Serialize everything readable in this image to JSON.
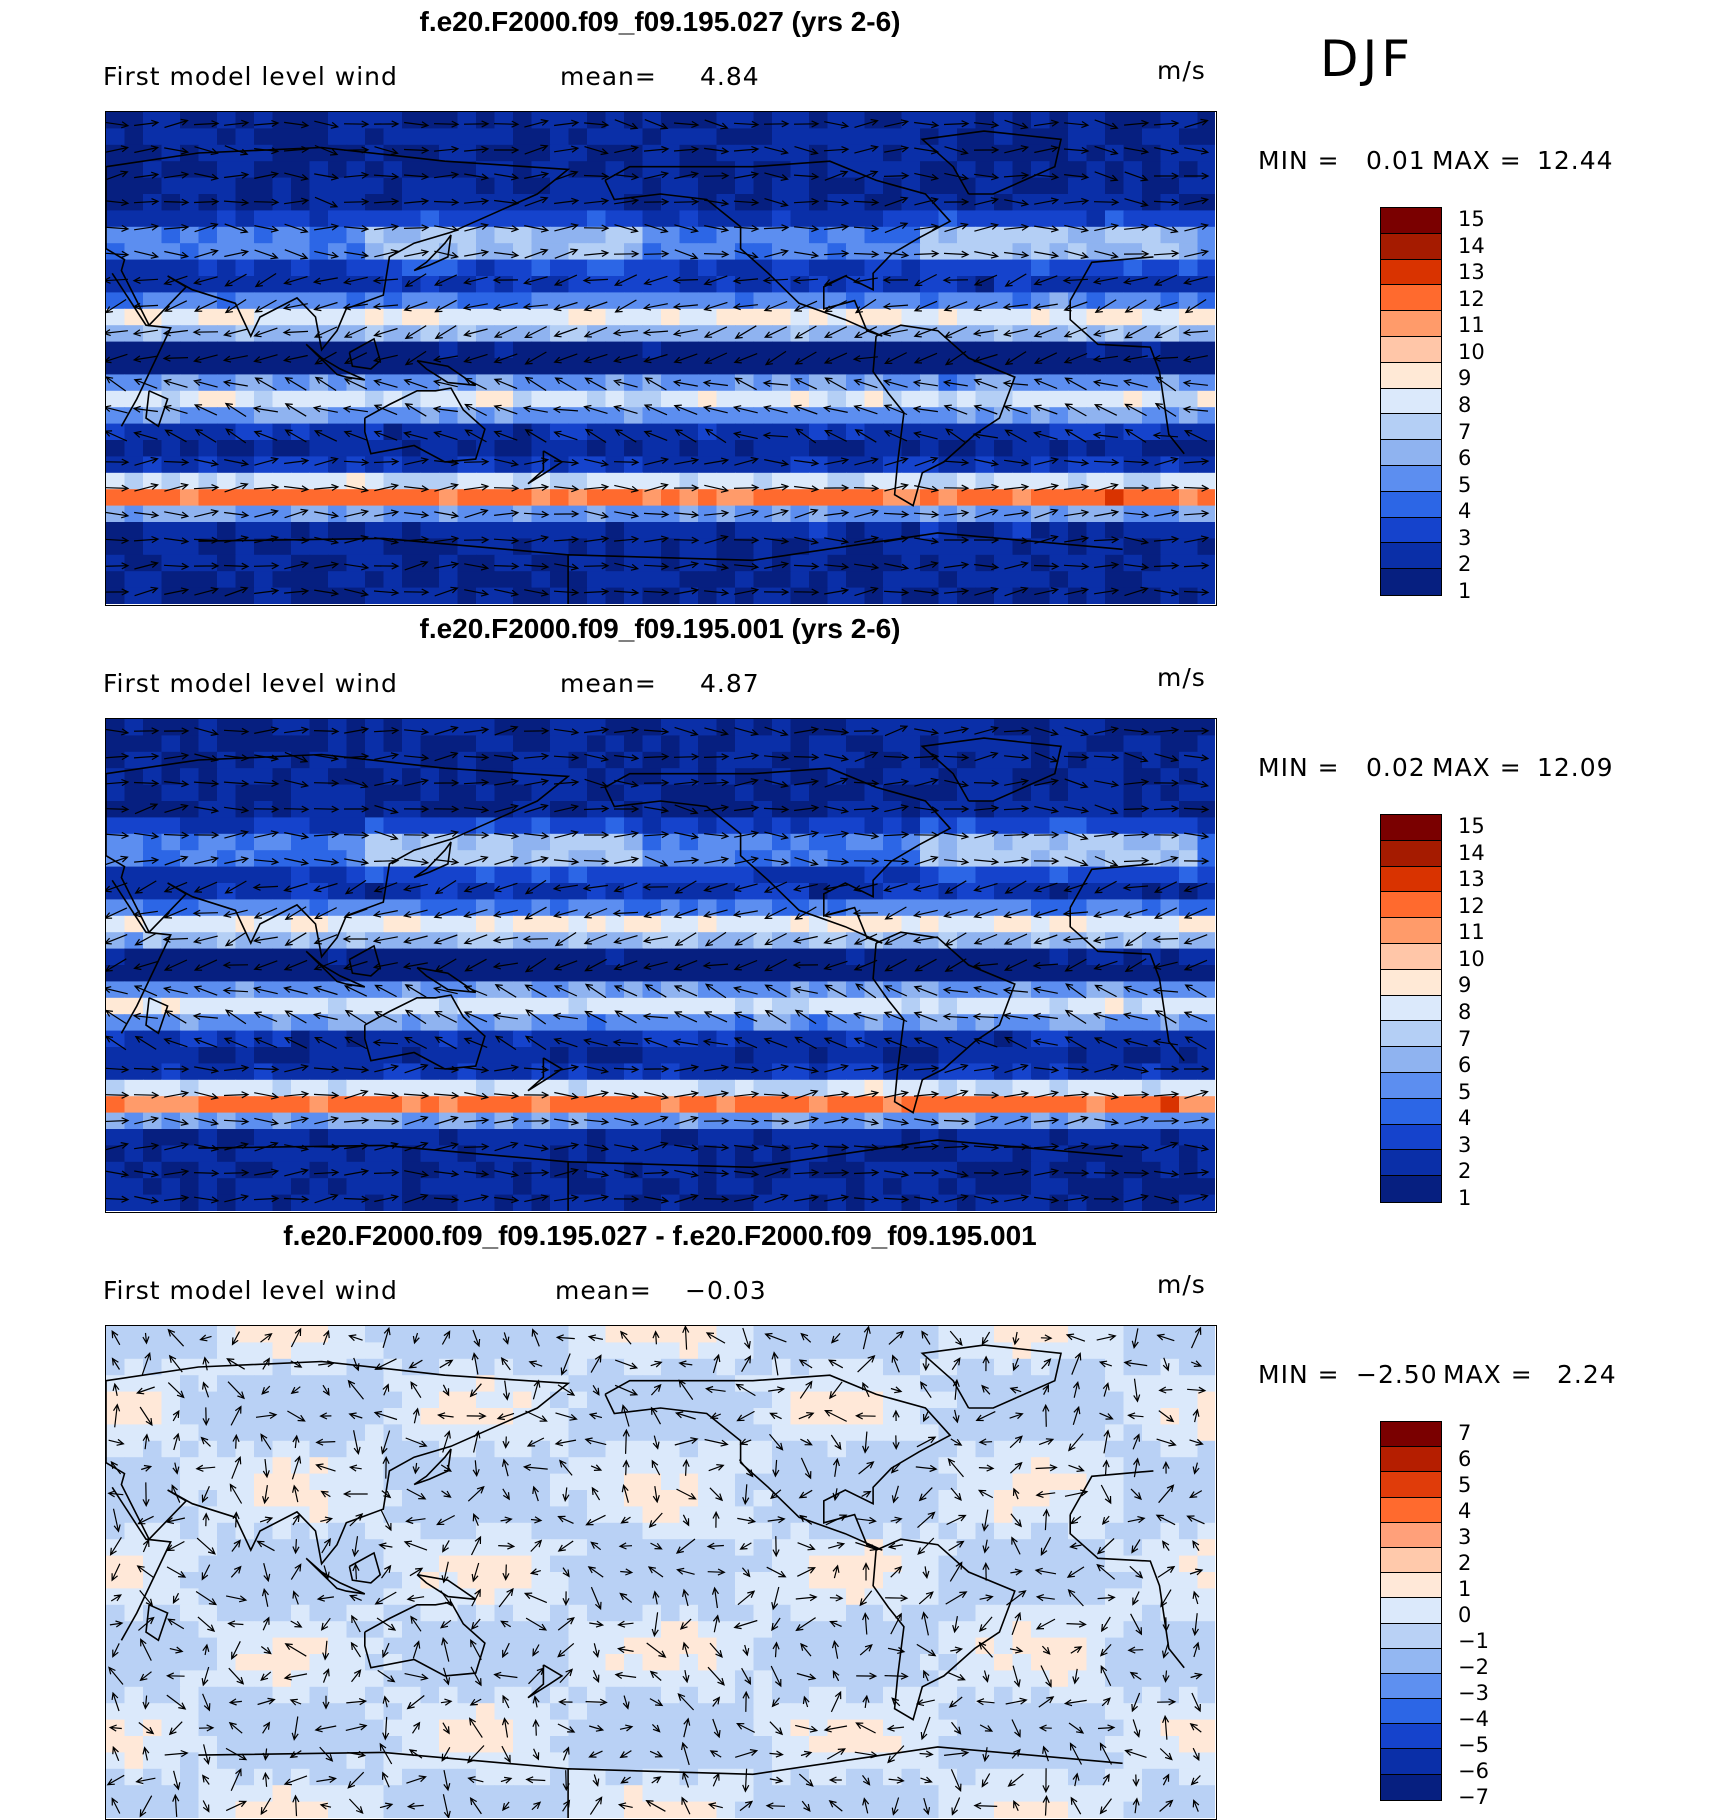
{
  "figure": {
    "season": "DJF",
    "panels": [
      {
        "title": "f.e20.F2000.f09_f09.195.027 (yrs 2-6)",
        "variable_label": "First model level wind",
        "mean_label": "mean=",
        "mean_value": "4.84",
        "units": "m/s",
        "min_label": "MIN =",
        "min_value": "0.01",
        "max_label": "MAX =",
        "max_value": "12.44",
        "colorbar_ticks": [
          "15",
          "14",
          "13",
          "12",
          "11",
          "10",
          "9",
          "8",
          "7",
          "6",
          "5",
          "4",
          "3",
          "2",
          "1"
        ],
        "colorbar_colors": [
          "#7a0000",
          "#a51b00",
          "#d93300",
          "#ff6a2e",
          "#ff9b6a",
          "#ffc6a8",
          "#ffe9d6",
          "#dbe9fb",
          "#b4cff5",
          "#8fb3f0",
          "#5c8ef0",
          "#2c66e6",
          "#1543cc",
          "#0a2fa8",
          "#061f80"
        ],
        "colorbar_values": [
          15,
          14,
          13,
          12,
          11,
          10,
          9,
          8,
          7,
          6,
          5,
          4,
          3,
          2,
          1
        ]
      },
      {
        "title": "f.e20.F2000.f09_f09.195.001 (yrs 2-6)",
        "variable_label": "First model level wind",
        "mean_label": "mean=",
        "mean_value": "4.87",
        "units": "m/s",
        "min_label": "MIN =",
        "min_value": "0.02",
        "max_label": "MAX =",
        "max_value": "12.09",
        "colorbar_ticks": [
          "15",
          "14",
          "13",
          "12",
          "11",
          "10",
          "9",
          "8",
          "7",
          "6",
          "5",
          "4",
          "3",
          "2",
          "1"
        ],
        "colorbar_colors": [
          "#7a0000",
          "#a51b00",
          "#d93300",
          "#ff6a2e",
          "#ff9b6a",
          "#ffc6a8",
          "#ffe9d6",
          "#dbe9fb",
          "#b4cff5",
          "#8fb3f0",
          "#5c8ef0",
          "#2c66e6",
          "#1543cc",
          "#0a2fa8",
          "#061f80"
        ],
        "colorbar_values": [
          15,
          14,
          13,
          12,
          11,
          10,
          9,
          8,
          7,
          6,
          5,
          4,
          3,
          2,
          1
        ]
      },
      {
        "title": "f.e20.F2000.f09_f09.195.027 - f.e20.F2000.f09_f09.195.001",
        "variable_label": "First model level wind",
        "mean_label": "mean=",
        "mean_value": "−0.03",
        "units": "m/s",
        "min_label": "MIN =",
        "min_value": "−2.50",
        "max_label": "MAX =",
        "max_value": "2.24",
        "colorbar_ticks": [
          "7",
          "6",
          "5",
          "4",
          "3",
          "2",
          "1",
          "0",
          "−1",
          "−2",
          "−3",
          "−4",
          "−5",
          "−6",
          "−7"
        ],
        "colorbar_colors": [
          "#7a0000",
          "#b51e00",
          "#e03c0a",
          "#ff6a2e",
          "#ffa07a",
          "#ffc9ab",
          "#ffe8d8",
          "#dbe9fb",
          "#b9d1f5",
          "#93b7f2",
          "#5e90f0",
          "#2c66e6",
          "#1543cc",
          "#0a2fa8",
          "#061f80"
        ],
        "colorbar_values": [
          7,
          6,
          5,
          4,
          3,
          2,
          1,
          0,
          -1,
          -2,
          -3,
          -4,
          -5,
          -6,
          -7
        ]
      }
    ]
  }
}
